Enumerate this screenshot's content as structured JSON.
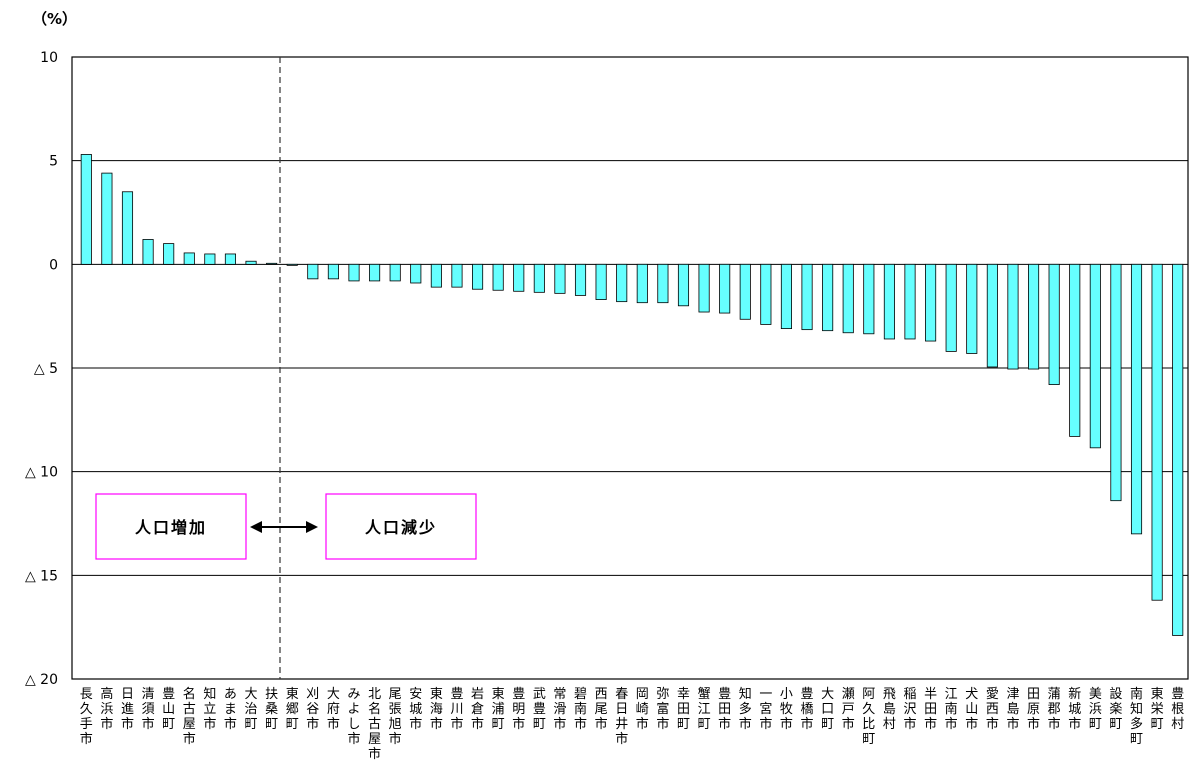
{
  "chart_data": {
    "type": "bar",
    "unit_label": "（%）",
    "ylim": [
      -20,
      10
    ],
    "y_ticks": [
      {
        "value": 10,
        "label": "10"
      },
      {
        "value": 5,
        "label": "5"
      },
      {
        "value": 0,
        "label": "0"
      },
      {
        "value": -5,
        "label": "△ 5"
      },
      {
        "value": -10,
        "label": "△ 10"
      },
      {
        "value": -15,
        "label": "△ 15"
      },
      {
        "value": -20,
        "label": "△ 20"
      }
    ],
    "grid": true,
    "bar_color": "#66ffff",
    "categories": [
      "長久手市",
      "高浜市",
      "日進市",
      "清須市",
      "豊山町",
      "名古屋市",
      "知立市",
      "あま市",
      "大治町",
      "扶桑町",
      "東郷町",
      "刈谷市",
      "大府市",
      "みよし市",
      "北名古屋市",
      "尾張旭市",
      "安城市",
      "東海市",
      "豊川市",
      "岩倉市",
      "東浦町",
      "豊明市",
      "武豊町",
      "常滑市",
      "碧南市",
      "西尾市",
      "春日井市",
      "岡崎市",
      "弥富市",
      "幸田町",
      "蟹江町",
      "豊田市",
      "知多市",
      "一宮市",
      "小牧市",
      "豊橋市",
      "大口町",
      "瀬戸市",
      "阿久比町",
      "飛島村",
      "稲沢市",
      "半田市",
      "江南市",
      "犬山市",
      "愛西市",
      "津島市",
      "田原市",
      "蒲郡市",
      "新城市",
      "美浜町",
      "設楽町",
      "南知多町",
      "東栄町",
      "豊根村"
    ],
    "values": [
      5.3,
      4.4,
      3.5,
      1.2,
      1.0,
      0.55,
      0.5,
      0.5,
      0.15,
      0.05,
      -0.05,
      -0.7,
      -0.7,
      -0.8,
      -0.8,
      -0.8,
      -0.9,
      -1.1,
      -1.1,
      -1.2,
      -1.25,
      -1.3,
      -1.35,
      -1.4,
      -1.5,
      -1.7,
      -1.8,
      -1.85,
      -1.85,
      -2.0,
      -2.3,
      -2.35,
      -2.65,
      -2.9,
      -3.1,
      -3.15,
      -3.2,
      -3.3,
      -3.35,
      -3.6,
      -3.6,
      -3.7,
      -4.2,
      -4.3,
      -4.95,
      -5.05,
      -5.05,
      -5.8,
      -8.3,
      -8.85,
      -11.4,
      -13.0,
      -16.2,
      -17.9
    ],
    "annotations": {
      "increase_label": "人口増加",
      "decrease_label": "人口減少",
      "arrow": "↔"
    }
  }
}
